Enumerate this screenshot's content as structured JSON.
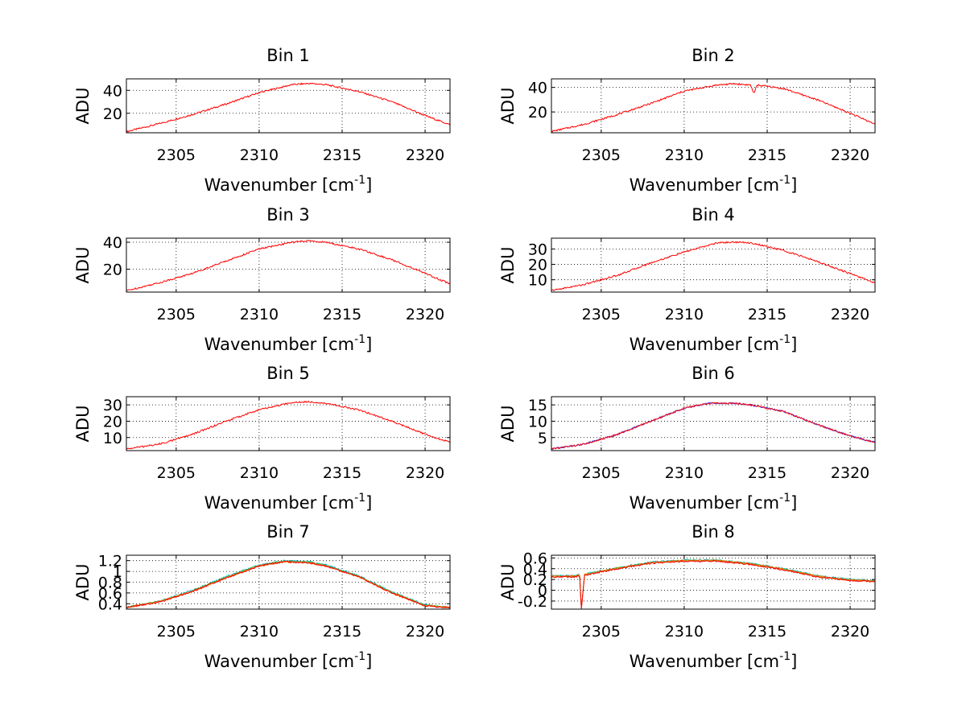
{
  "chart_data": [
    {
      "type": "line",
      "title": "Bin 1",
      "xlabel": "Wavenumber [cm",
      "xlabel_superscript": "-1",
      "xlabel_suffix": "]",
      "ylabel": "ADU",
      "xlim": [
        2302,
        2321.5
      ],
      "ylim": [
        3,
        50
      ],
      "xticks": [
        2305,
        2310,
        2315,
        2320
      ],
      "yticks": [
        20,
        40
      ],
      "ytick_labels": [
        "20",
        "40"
      ],
      "grid": true,
      "series": [
        {
          "color": "#ff0000",
          "x": [
            2302,
            2304,
            2306,
            2308,
            2310,
            2312,
            2313,
            2314,
            2316,
            2318,
            2320,
            2321.5
          ],
          "y": [
            4,
            11,
            19,
            28,
            38,
            45,
            46,
            45,
            39,
            30,
            18,
            10
          ]
        }
      ]
    },
    {
      "type": "line",
      "title": "Bin 2",
      "xlabel": "Wavenumber [cm",
      "xlabel_superscript": "-1",
      "xlabel_suffix": "]",
      "ylabel": "ADU",
      "xlim": [
        2302,
        2321.5
      ],
      "ylim": [
        3,
        47
      ],
      "xticks": [
        2305,
        2310,
        2315,
        2320
      ],
      "yticks": [
        20,
        40
      ],
      "ytick_labels": [
        "20",
        "40"
      ],
      "grid": true,
      "series": [
        {
          "color": "#ff0000",
          "x": [
            2302,
            2304,
            2306,
            2308,
            2310,
            2312,
            2313,
            2314,
            2314.2,
            2314.4,
            2316,
            2318,
            2320,
            2321.5
          ],
          "y": [
            4,
            10,
            18,
            27,
            37,
            42,
            43,
            42,
            35,
            42,
            39,
            30,
            19,
            10
          ]
        }
      ]
    },
    {
      "type": "line",
      "title": "Bin 3",
      "xlabel": "Wavenumber [cm",
      "xlabel_superscript": "-1",
      "xlabel_suffix": "]",
      "ylabel": "ADU",
      "xlim": [
        2302,
        2321.5
      ],
      "ylim": [
        3,
        43
      ],
      "xticks": [
        2305,
        2310,
        2315,
        2320
      ],
      "yticks": [
        20,
        40
      ],
      "ytick_labels": [
        "20",
        "40"
      ],
      "grid": true,
      "series": [
        {
          "color": "#ff0000",
          "x": [
            2302,
            2304,
            2306,
            2308,
            2310,
            2312,
            2313,
            2314,
            2316,
            2318,
            2320,
            2321.5
          ],
          "y": [
            4,
            10,
            17,
            26,
            35,
            40,
            41,
            40,
            35,
            27,
            17,
            9
          ]
        }
      ]
    },
    {
      "type": "line",
      "title": "Bin 4",
      "xlabel": "Wavenumber [cm",
      "xlabel_superscript": "-1",
      "xlabel_suffix": "]",
      "ylabel": "ADU",
      "xlim": [
        2302,
        2321.5
      ],
      "ylim": [
        2,
        37
      ],
      "xticks": [
        2305,
        2310,
        2315,
        2320
      ],
      "yticks": [
        10,
        20,
        30
      ],
      "ytick_labels": [
        "10",
        "20",
        "30"
      ],
      "grid": true,
      "series": [
        {
          "color": "#ff0000",
          "x": [
            2302,
            2304,
            2306,
            2308,
            2310,
            2312,
            2313,
            2314,
            2316,
            2318,
            2320,
            2321.5
          ],
          "y": [
            3,
            7,
            13,
            21,
            28,
            34,
            34.5,
            34,
            29,
            22,
            14,
            8
          ]
        }
      ]
    },
    {
      "type": "line",
      "title": "Bin 5",
      "xlabel": "Wavenumber [cm",
      "xlabel_superscript": "-1",
      "xlabel_suffix": "]",
      "ylabel": "ADU",
      "xlim": [
        2302,
        2321.5
      ],
      "ylim": [
        2,
        35
      ],
      "xticks": [
        2305,
        2310,
        2315,
        2320
      ],
      "yticks": [
        10,
        20,
        30
      ],
      "ytick_labels": [
        "10",
        "20",
        "30"
      ],
      "grid": true,
      "series": [
        {
          "color": "#ff0000",
          "x": [
            2302,
            2304,
            2306,
            2308,
            2310,
            2312,
            2313,
            2314,
            2316,
            2318,
            2320,
            2321.5
          ],
          "y": [
            3,
            6,
            12,
            20,
            27,
            31.5,
            32,
            31,
            27,
            20,
            12,
            7
          ]
        }
      ]
    },
    {
      "type": "line",
      "title": "Bin 6",
      "xlabel": "Wavenumber [cm",
      "xlabel_superscript": "-1",
      "xlabel_suffix": "]",
      "ylabel": "ADU",
      "xlim": [
        2302,
        2321.5
      ],
      "ylim": [
        1,
        17.5
      ],
      "xticks": [
        2305,
        2310,
        2315,
        2320
      ],
      "yticks": [
        5,
        10,
        15
      ],
      "ytick_labels": [
        "5",
        "10",
        "15"
      ],
      "grid": true,
      "series": [
        {
          "color": "#3040ff",
          "x": [
            2302,
            2304,
            2306,
            2308,
            2310,
            2311.5,
            2313,
            2314,
            2316,
            2318,
            2320,
            2321.5
          ],
          "y": [
            1.5,
            3,
            6,
            10,
            14,
            15.5,
            15.5,
            15,
            13,
            9,
            5.5,
            3.5
          ]
        },
        {
          "color": "#ff0000",
          "x": [
            2302,
            2304,
            2306,
            2308,
            2310,
            2311.5,
            2313,
            2314,
            2316,
            2318,
            2320,
            2321.5
          ],
          "y": [
            1.5,
            3,
            6,
            10,
            14,
            15.5,
            15.5,
            15,
            13,
            9,
            5.5,
            3.5
          ]
        }
      ]
    },
    {
      "type": "line",
      "title": "Bin 7",
      "xlabel": "Wavenumber [cm",
      "xlabel_superscript": "-1",
      "xlabel_suffix": "]",
      "ylabel": "ADU",
      "xlim": [
        2302,
        2321.5
      ],
      "ylim": [
        0.3,
        1.3
      ],
      "xticks": [
        2305,
        2310,
        2315,
        2320
      ],
      "yticks": [
        0.4,
        0.6,
        0.8,
        1,
        1.2
      ],
      "ytick_labels": [
        "0.4",
        "0.6",
        "0.8",
        "1",
        "1.2"
      ],
      "grid": true,
      "series": [
        {
          "color": "#00b0d0",
          "x": [
            2302,
            2304,
            2306,
            2308,
            2310,
            2311.5,
            2313,
            2314,
            2316,
            2318,
            2320,
            2321.5
          ],
          "y": [
            0.33,
            0.45,
            0.65,
            0.9,
            1.12,
            1.2,
            1.18,
            1.12,
            0.92,
            0.62,
            0.38,
            0.33
          ]
        },
        {
          "color": "#30c030",
          "x": [
            2302,
            2304,
            2306,
            2308,
            2310,
            2311.5,
            2313,
            2314,
            2316,
            2318,
            2320,
            2321.5
          ],
          "y": [
            0.33,
            0.44,
            0.64,
            0.89,
            1.11,
            1.19,
            1.17,
            1.11,
            0.91,
            0.61,
            0.37,
            0.33
          ]
        },
        {
          "color": "#ff8000",
          "x": [
            2302,
            2304,
            2306,
            2308,
            2310,
            2311.5,
            2313,
            2314,
            2316,
            2318,
            2320,
            2321.5
          ],
          "y": [
            0.33,
            0.44,
            0.63,
            0.88,
            1.1,
            1.18,
            1.16,
            1.1,
            0.9,
            0.6,
            0.37,
            0.33
          ]
        },
        {
          "color": "#ff0000",
          "x": [
            2302,
            2304,
            2306,
            2308,
            2310,
            2311.5,
            2313,
            2314,
            2316,
            2318,
            2320,
            2321.5
          ],
          "y": [
            0.33,
            0.43,
            0.63,
            0.88,
            1.1,
            1.18,
            1.16,
            1.1,
            0.9,
            0.6,
            0.36,
            0.33
          ]
        }
      ]
    },
    {
      "type": "line",
      "title": "Bin 8",
      "xlabel": "Wavenumber [cm",
      "xlabel_superscript": "-1",
      "xlabel_suffix": "]",
      "ylabel": "ADU",
      "xlim": [
        2302,
        2321.5
      ],
      "ylim": [
        -0.35,
        0.65
      ],
      "xticks": [
        2305,
        2310,
        2315,
        2320
      ],
      "yticks": [
        -0.2,
        0,
        0.2,
        0.4,
        0.6
      ],
      "ytick_labels": [
        "-0.2",
        "0",
        "0.2",
        "0.4",
        "0.6"
      ],
      "grid": true,
      "series": [
        {
          "color": "#00b0d0",
          "x": [
            2302,
            2303.5,
            2303.7,
            2303.8,
            2304,
            2306,
            2308,
            2310,
            2312,
            2314,
            2316,
            2318,
            2320,
            2321.5
          ],
          "y": [
            0.27,
            0.27,
            0.3,
            -0.35,
            0.3,
            0.42,
            0.52,
            0.56,
            0.56,
            0.5,
            0.4,
            0.27,
            0.2,
            0.18
          ]
        },
        {
          "color": "#30c030",
          "x": [
            2302,
            2303.5,
            2303.7,
            2303.8,
            2304,
            2306,
            2308,
            2310,
            2312,
            2314,
            2316,
            2318,
            2320,
            2321.5
          ],
          "y": [
            0.26,
            0.26,
            0.29,
            -0.35,
            0.29,
            0.41,
            0.51,
            0.55,
            0.55,
            0.49,
            0.39,
            0.26,
            0.19,
            0.17
          ]
        },
        {
          "color": "#ff8000",
          "x": [
            2302,
            2303.5,
            2303.7,
            2303.8,
            2304,
            2306,
            2308,
            2310,
            2312,
            2314,
            2316,
            2318,
            2320,
            2321.5
          ],
          "y": [
            0.26,
            0.26,
            0.29,
            -0.35,
            0.29,
            0.41,
            0.51,
            0.55,
            0.55,
            0.49,
            0.39,
            0.26,
            0.19,
            0.17
          ]
        },
        {
          "color": "#ff0000",
          "x": [
            2302,
            2303.5,
            2303.7,
            2303.8,
            2304,
            2306,
            2308,
            2310,
            2312,
            2314,
            2316,
            2318,
            2320,
            2321.5
          ],
          "y": [
            0.25,
            0.25,
            0.28,
            -0.35,
            0.28,
            0.4,
            0.5,
            0.54,
            0.54,
            0.48,
            0.38,
            0.25,
            0.18,
            0.16
          ]
        }
      ]
    }
  ]
}
